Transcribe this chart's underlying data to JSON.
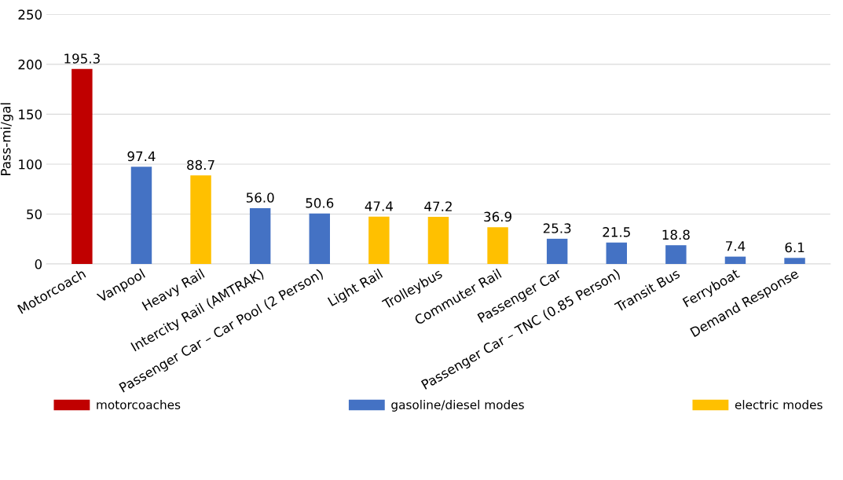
{
  "chart_data": {
    "type": "bar",
    "ylabel": "Pass-mi/gal",
    "categories": [
      "Motorcoach",
      "Vanpool",
      "Heavy Rail",
      "Intercity Rail (AMTRAK)",
      "Passenger Car – Car Pool (2 Person)",
      "Light Rail",
      "Trolleybus",
      "Commuter Rail",
      "Passenger Car",
      "Passenger Car – TNC (0.85 Person)",
      "Transit Bus",
      "Ferryboat",
      "Demand Response"
    ],
    "series": [
      {
        "name": "motorcoaches",
        "color": "#c00000",
        "values": [
          195.3,
          null,
          null,
          null,
          null,
          null,
          null,
          null,
          null,
          null,
          null,
          null,
          null
        ],
        "value_labels": [
          "195.3",
          null,
          null,
          null,
          null,
          null,
          null,
          null,
          null,
          null,
          null,
          null,
          null
        ]
      },
      {
        "name": "gasoline/diesel modes",
        "color": "#4472c4",
        "values": [
          null,
          97.4,
          null,
          56.0,
          50.6,
          null,
          null,
          null,
          25.3,
          21.5,
          18.8,
          7.4,
          6.1
        ],
        "value_labels": [
          null,
          "97.4",
          null,
          "56.0",
          "50.6",
          null,
          null,
          null,
          "25.3",
          "21.5",
          "18.8",
          "7.4",
          "6.1"
        ]
      },
      {
        "name": "electric modes",
        "color": "#ffc000",
        "values": [
          null,
          null,
          88.7,
          null,
          null,
          47.4,
          47.2,
          36.9,
          null,
          null,
          null,
          null,
          null
        ],
        "value_labels": [
          null,
          null,
          "88.7",
          null,
          null,
          "47.4",
          "47.2",
          "36.9",
          null,
          null,
          null,
          null,
          null
        ]
      }
    ],
    "ylim": [
      0,
      250
    ],
    "yticks": [
      0,
      50,
      100,
      150,
      200,
      250
    ],
    "grid": "y",
    "legend": "bottom"
  }
}
